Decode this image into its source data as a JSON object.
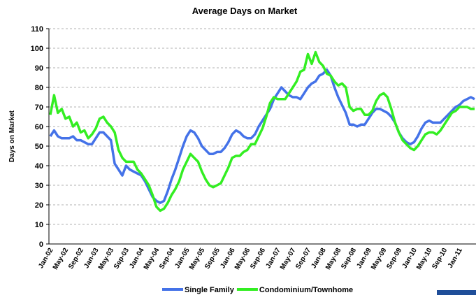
{
  "chart_data": {
    "type": "line",
    "title": "Average Days on Market",
    "y_label": "Days on Market",
    "categories": [
      "Jan-02",
      null,
      null,
      null,
      "May-02",
      null,
      null,
      null,
      "Sep-02",
      null,
      null,
      null,
      "Jan-03",
      null,
      null,
      null,
      "May-03",
      null,
      null,
      null,
      "Sep-03",
      null,
      null,
      null,
      "Jan-04",
      null,
      null,
      null,
      "May-04",
      null,
      null,
      null,
      "Sep-04",
      null,
      null,
      null,
      "Jan-05",
      null,
      null,
      null,
      "May-05",
      null,
      null,
      null,
      "Sep-05",
      null,
      null,
      null,
      "Jan-06",
      null,
      null,
      null,
      "May-06",
      null,
      null,
      null,
      "Sep-06",
      null,
      null,
      null,
      "Jan-07",
      null,
      null,
      null,
      "May-07",
      null,
      null,
      null,
      "Sep-07",
      null,
      null,
      null,
      "Jan-08",
      null,
      null,
      null,
      "May-08",
      null,
      null,
      null,
      "Sep-08",
      null,
      null,
      null,
      "Jan-09",
      null,
      null,
      null,
      "May-09",
      null,
      null,
      null,
      "Sep-09",
      null,
      null,
      null,
      "Jan-10",
      null,
      null,
      null,
      "May-10",
      null,
      null,
      null,
      "Sep-10",
      null,
      null,
      null,
      "Jan-11",
      null,
      null,
      null,
      null
    ],
    "series": [
      {
        "name": "Single Family",
        "color": "#4472e8",
        "values": [
          55,
          58,
          55,
          54,
          54,
          54,
          55,
          53,
          53,
          52,
          51,
          51,
          54,
          57,
          57,
          55,
          53,
          41,
          38,
          35,
          40,
          38,
          37,
          36,
          35,
          32,
          28,
          24,
          22,
          21,
          22,
          27,
          33,
          38,
          44,
          50,
          55,
          58,
          57,
          54,
          50,
          48,
          46,
          46,
          47,
          47,
          49,
          52,
          56,
          58,
          57,
          55,
          54,
          54,
          56,
          60,
          63,
          66,
          69,
          74,
          77,
          80,
          78,
          76,
          75,
          75,
          74,
          77,
          80,
          82,
          83,
          86,
          87,
          89,
          86,
          80,
          75,
          71,
          67,
          61,
          61,
          60,
          61,
          61,
          64,
          67,
          69,
          69,
          68,
          67,
          65,
          62,
          57,
          54,
          52,
          51,
          52,
          55,
          59,
          62,
          63,
          62,
          62,
          62,
          64,
          66,
          68,
          70,
          71,
          73,
          74,
          75,
          74
        ]
      },
      {
        "name": "Condominium/Townhome",
        "color": "#33ee22",
        "values": [
          66,
          76,
          67,
          69,
          64,
          65,
          60,
          62,
          57,
          58,
          54,
          56,
          59,
          64,
          65,
          62,
          60,
          57,
          48,
          44,
          42,
          42,
          42,
          38,
          36,
          33,
          30,
          25,
          19,
          17,
          18,
          21,
          25,
          28,
          32,
          38,
          42,
          46,
          44,
          42,
          37,
          33,
          30,
          29,
          30,
          31,
          35,
          39,
          44,
          45,
          45,
          47,
          48,
          51,
          51,
          55,
          59,
          65,
          72,
          75,
          74,
          74,
          74,
          77,
          80,
          83,
          88,
          89,
          97,
          92,
          98,
          93,
          91,
          87,
          86,
          83,
          81,
          82,
          80,
          70,
          68,
          69,
          69,
          66,
          66,
          68,
          73,
          76,
          77,
          75,
          69,
          62,
          57,
          53,
          51,
          49,
          48,
          50,
          53,
          56,
          57,
          57,
          56,
          58,
          61,
          64,
          67,
          68,
          70,
          70,
          70,
          69,
          69
        ]
      }
    ],
    "ylim": [
      0,
      110
    ],
    "yticks": [
      0,
      10,
      20,
      30,
      40,
      50,
      60,
      70,
      80,
      90,
      100,
      110
    ],
    "grid": true
  }
}
